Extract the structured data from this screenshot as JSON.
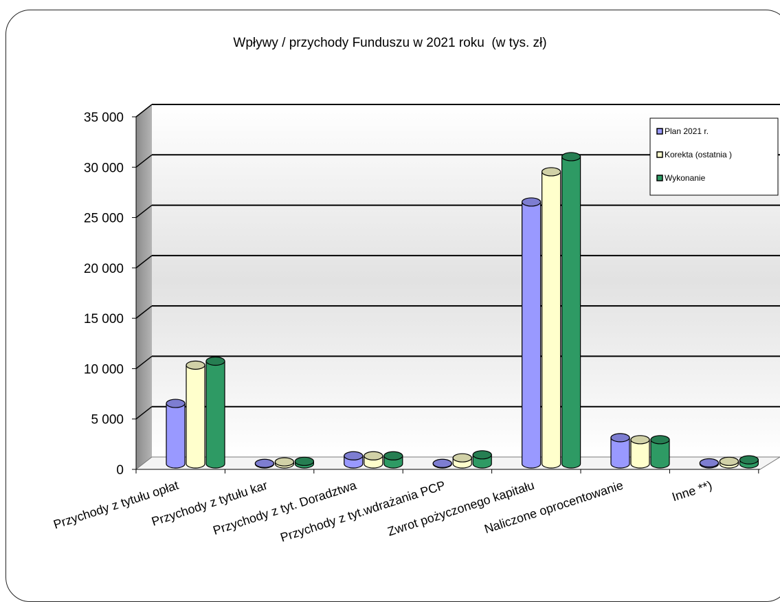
{
  "chart_data": {
    "type": "bar",
    "title": "Wpływy / przychody Funduszu w 2021 roku  (w tys. zł)",
    "categories": [
      "Przychody z tytułu opłat",
      "Przychody z tytułu kar",
      "Przychody z tyt. Doradztwa",
      "Przychody z tyt.wdrażania PCP",
      "Zwrot pożyczonego kapitału",
      "Naliczone oprocentowanie",
      "Inne   **)"
    ],
    "series": [
      {
        "name": "Plan 2021 r.",
        "color": "#9999ff",
        "values": [
          6000,
          50,
          800,
          50,
          26000,
          2600,
          100
        ]
      },
      {
        "name": "Korekta (ostatnia )",
        "color": "#ffffcc",
        "values": [
          9800,
          200,
          800,
          600,
          29000,
          2400,
          250
        ]
      },
      {
        "name": "Wykonanie",
        "color": "#2e9a64",
        "values": [
          10200,
          250,
          800,
          900,
          30500,
          2400,
          400
        ]
      }
    ],
    "yticks": [
      "0",
      "5 000",
      "10 000",
      "15 000",
      "20 000",
      "25 000",
      "30 000",
      "35 000"
    ],
    "ylim": [
      0,
      35000
    ],
    "grid": true,
    "legend_position": "top-right",
    "xlabel": "",
    "ylabel": ""
  }
}
